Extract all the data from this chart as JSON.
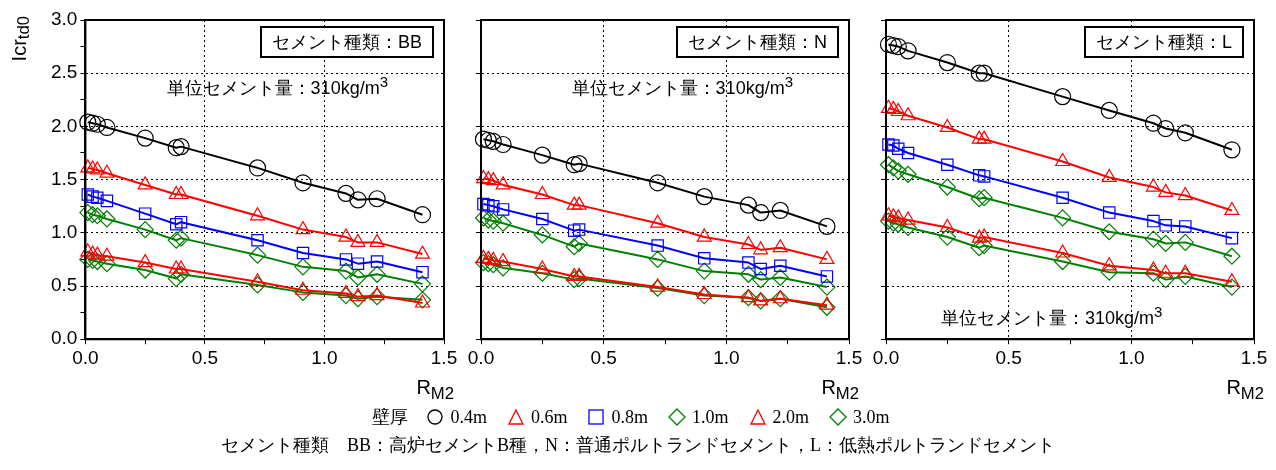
{
  "chart_data": [
    {
      "type": "line",
      "xlabel": "R$_{M2}$",
      "ylabel": "Icr$_{td0}$",
      "legend": "bottom",
      "legend_title": "壁厚",
      "grid": true,
      "annotations": [
        "セメント種類：BB",
        "単位セメント量：310kg/m$^{3}$",
        "セメント種類　BB：高炉セメントB種，N：普通ポルトランドセメント，L：低熱ポルトランドセメント"
      ],
      "xlim": [
        0,
        1.5
      ],
      "ylim": [
        0,
        3
      ],
      "xticks": [
        {
          "value": 0,
          "label": "0.0"
        },
        {
          "value": 0.25,
          "label": null
        },
        {
          "value": 0.5,
          "label": "0.5"
        },
        {
          "value": 0.75,
          "label": null
        },
        {
          "value": 1,
          "label": "1.0"
        },
        {
          "value": 1.25,
          "label": null
        },
        {
          "value": 1.5,
          "label": "1.5"
        }
      ],
      "yticks": [
        {
          "value": 0,
          "label": "0.0"
        },
        {
          "value": 0.25,
          "label": null
        },
        {
          "value": 0.5,
          "label": "0.5"
        },
        {
          "value": 0.75,
          "label": null
        },
        {
          "value": 1,
          "label": "1.0"
        },
        {
          "value": 1.25,
          "label": null
        },
        {
          "value": 1.5,
          "label": "1.5"
        },
        {
          "value": 1.75,
          "label": null
        },
        {
          "value": 2,
          "label": "2.0"
        },
        {
          "value": 2.25,
          "label": null
        },
        {
          "value": 2.5,
          "label": "2.5"
        },
        {
          "value": 2.75,
          "label": null
        },
        {
          "value": 3,
          "label": "3.0"
        }
      ],
      "x": [
        0.01,
        0.03,
        0.05,
        0.09,
        0.25,
        0.38,
        0.4,
        0.72,
        0.91,
        1.09,
        1.14,
        1.22,
        1.41
      ],
      "series": [
        {
          "name": "0.4m",
          "color": "#000000",
          "marker": "circle",
          "values": [
            2.04,
            2.03,
            2.02,
            1.99,
            1.89,
            1.8,
            1.81,
            1.61,
            1.47,
            1.37,
            1.31,
            1.32,
            1.17
          ]
        },
        {
          "name": "0.6m",
          "color": "#ff0000",
          "marker": "triangle",
          "values": [
            1.61,
            1.6,
            1.59,
            1.56,
            1.45,
            1.36,
            1.36,
            1.16,
            1.03,
            0.96,
            0.91,
            0.91,
            0.8
          ]
        },
        {
          "name": "0.8m",
          "color": "#0000ff",
          "marker": "square",
          "values": [
            1.36,
            1.34,
            1.33,
            1.3,
            1.18,
            1.08,
            1.1,
            0.93,
            0.81,
            0.75,
            0.71,
            0.73,
            0.63
          ]
        },
        {
          "name": "1.0m",
          "color": "#008000",
          "marker": "diamond",
          "values": [
            1.19,
            1.17,
            1.16,
            1.13,
            1.03,
            0.93,
            0.95,
            0.79,
            0.68,
            0.64,
            0.58,
            0.61,
            0.52
          ]
        },
        {
          "name": "2.0m",
          "color": "#ff0000",
          "marker": "triangle",
          "values": [
            0.82,
            0.8,
            0.79,
            0.78,
            0.72,
            0.66,
            0.66,
            0.54,
            0.46,
            0.43,
            0.4,
            0.41,
            0.34
          ]
        },
        {
          "name": "3.0m",
          "color": "#008000",
          "marker": "diamond",
          "values": [
            0.75,
            0.74,
            0.73,
            0.71,
            0.65,
            0.57,
            0.61,
            0.51,
            0.44,
            0.41,
            0.38,
            0.4,
            0.37
          ]
        }
      ]
    },
    {
      "type": "line",
      "xlabel": "R$_{M2}$",
      "grid": true,
      "tick_labels": "x",
      "annotations": [
        "セメント種類：N",
        "単位セメント量：310kg/m$^{3}$"
      ],
      "xlim": [
        0,
        1.5
      ],
      "ylim": [
        0,
        3
      ],
      "xticks": [
        {
          "value": 0,
          "label": "0.0"
        },
        {
          "value": 0.25,
          "label": null
        },
        {
          "value": 0.5,
          "label": "0.5"
        },
        {
          "value": 0.75,
          "label": null
        },
        {
          "value": 1,
          "label": "1.0"
        },
        {
          "value": 1.25,
          "label": null
        },
        {
          "value": 1.5,
          "label": "1.5"
        }
      ],
      "yticks": [
        {
          "value": 0,
          "label": null
        },
        {
          "value": 0.5,
          "label": null
        },
        {
          "value": 1,
          "label": null
        },
        {
          "value": 1.5,
          "label": null
        },
        {
          "value": 2,
          "label": null
        },
        {
          "value": 2.5,
          "label": null
        },
        {
          "value": 3,
          "label": null
        }
      ],
      "x": [
        0.01,
        0.03,
        0.05,
        0.09,
        0.25,
        0.38,
        0.4,
        0.72,
        0.91,
        1.09,
        1.14,
        1.22,
        1.41
      ],
      "series": [
        {
          "color": "#000000",
          "marker": "circle",
          "values": [
            1.88,
            1.87,
            1.86,
            1.83,
            1.73,
            1.64,
            1.65,
            1.47,
            1.34,
            1.26,
            1.19,
            1.21,
            1.06
          ]
        },
        {
          "color": "#ff0000",
          "marker": "triangle",
          "values": [
            1.51,
            1.5,
            1.49,
            1.45,
            1.36,
            1.26,
            1.26,
            1.09,
            0.96,
            0.89,
            0.84,
            0.86,
            0.75
          ]
        },
        {
          "color": "#0000ff",
          "marker": "square",
          "values": [
            1.27,
            1.26,
            1.25,
            1.22,
            1.13,
            1.02,
            1.03,
            0.88,
            0.76,
            0.72,
            0.66,
            0.69,
            0.59
          ]
        },
        {
          "color": "#008000",
          "marker": "diamond",
          "values": [
            1.14,
            1.12,
            1.11,
            1.09,
            0.98,
            0.87,
            0.9,
            0.75,
            0.64,
            0.61,
            0.56,
            0.58,
            0.49
          ]
        },
        {
          "color": "#ff0000",
          "marker": "triangle",
          "values": [
            0.76,
            0.75,
            0.74,
            0.73,
            0.66,
            0.59,
            0.59,
            0.49,
            0.42,
            0.39,
            0.36,
            0.38,
            0.32
          ]
        },
        {
          "color": "#008000",
          "marker": "diamond",
          "values": [
            0.72,
            0.71,
            0.7,
            0.67,
            0.62,
            0.56,
            0.57,
            0.48,
            0.41,
            0.39,
            0.36,
            0.38,
            0.3
          ]
        }
      ]
    },
    {
      "type": "line",
      "xlabel": "R$_{M2}$",
      "grid": true,
      "tick_labels": "x",
      "annotations": [
        "セメント種類：L",
        "単位セメント量：310kg/m$^{3}$"
      ],
      "xlim": [
        0,
        1.5
      ],
      "ylim": [
        0,
        3
      ],
      "xticks": [
        {
          "value": 0,
          "label": "0.0"
        },
        {
          "value": 0.25,
          "label": null
        },
        {
          "value": 0.5,
          "label": "0.5"
        },
        {
          "value": 0.75,
          "label": null
        },
        {
          "value": 1,
          "label": "1.0"
        },
        {
          "value": 1.25,
          "label": null
        },
        {
          "value": 1.5,
          "label": "1.5"
        }
      ],
      "yticks": [
        {
          "value": 0,
          "label": null
        },
        {
          "value": 0.5,
          "label": null
        },
        {
          "value": 1,
          "label": null
        },
        {
          "value": 1.5,
          "label": null
        },
        {
          "value": 2,
          "label": null
        },
        {
          "value": 2.5,
          "label": null
        },
        {
          "value": 3,
          "label": null
        }
      ],
      "x": [
        0.01,
        0.03,
        0.05,
        0.09,
        0.25,
        0.38,
        0.4,
        0.72,
        0.91,
        1.09,
        1.14,
        1.22,
        1.41
      ],
      "series": [
        {
          "color": "#000000",
          "marker": "circle",
          "values": [
            2.77,
            2.76,
            2.75,
            2.71,
            2.6,
            2.5,
            2.5,
            2.28,
            2.15,
            2.03,
            1.98,
            1.94,
            1.78
          ]
        },
        {
          "color": "#ff0000",
          "marker": "triangle",
          "values": [
            2.17,
            2.16,
            2.14,
            2.1,
            1.99,
            1.88,
            1.88,
            1.67,
            1.52,
            1.43,
            1.38,
            1.35,
            1.21
          ]
        },
        {
          "color": "#0000ff",
          "marker": "square",
          "values": [
            1.83,
            1.82,
            1.79,
            1.75,
            1.64,
            1.54,
            1.53,
            1.33,
            1.19,
            1.11,
            1.07,
            1.06,
            0.95
          ]
        },
        {
          "color": "#008000",
          "marker": "diamond",
          "values": [
            1.64,
            1.61,
            1.58,
            1.55,
            1.43,
            1.32,
            1.33,
            1.14,
            1.01,
            0.94,
            0.9,
            0.91,
            0.78
          ]
        },
        {
          "color": "#ff0000",
          "marker": "triangle",
          "values": [
            1.16,
            1.15,
            1.14,
            1.12,
            1.05,
            0.95,
            0.96,
            0.81,
            0.69,
            0.65,
            0.62,
            0.62,
            0.54
          ]
        },
        {
          "color": "#008000",
          "marker": "diamond",
          "values": [
            1.11,
            1.09,
            1.08,
            1.05,
            0.96,
            0.86,
            0.88,
            0.73,
            0.63,
            0.62,
            0.56,
            0.59,
            0.49
          ]
        }
      ]
    }
  ]
}
